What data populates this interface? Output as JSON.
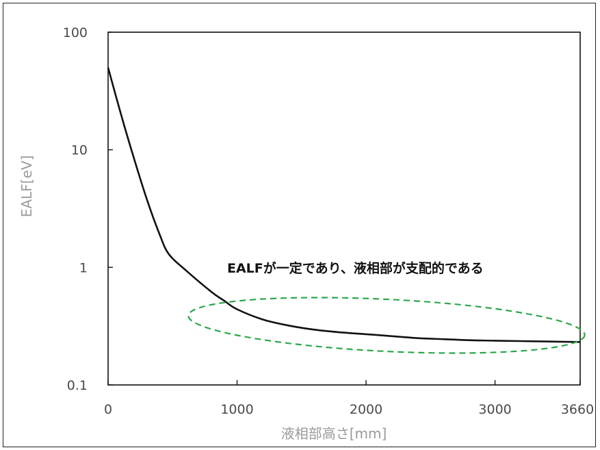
{
  "chart_data": {
    "type": "line",
    "title": "",
    "xlabel": "液相部高さ[mm]",
    "ylabel": "EALF[eV]",
    "xlim": [
      0,
      3660
    ],
    "ylim": [
      0.1,
      100
    ],
    "yscale": "log",
    "grid": false,
    "x_ticks": [
      0,
      1000,
      2000,
      3000,
      3660
    ],
    "x_tick_labels": [
      "0",
      "1000",
      "2000",
      "3000",
      "3660"
    ],
    "y_ticks": [
      0.1,
      1,
      10,
      100
    ],
    "y_tick_labels": [
      "0.1",
      "1",
      "10",
      "100"
    ],
    "series": [
      {
        "color": "#111111",
        "x": [
          0,
          100,
          200,
          300,
          400,
          470,
          600,
          800,
          900,
          1000,
          1200,
          1400,
          1600,
          1800,
          2000,
          2200,
          2400,
          2600,
          2800,
          3000,
          3200,
          3400,
          3660
        ],
        "y": [
          50,
          20,
          8.5,
          3.8,
          1.9,
          1.3,
          0.95,
          0.62,
          0.52,
          0.44,
          0.36,
          0.32,
          0.295,
          0.28,
          0.27,
          0.26,
          0.25,
          0.245,
          0.24,
          0.238,
          0.236,
          0.234,
          0.232
        ]
      }
    ],
    "annotations": [
      {
        "text": "EALFが一定であり、液相部が支配的である",
        "shape": "dashed-ellipse",
        "color": "#2aa84a"
      }
    ]
  }
}
